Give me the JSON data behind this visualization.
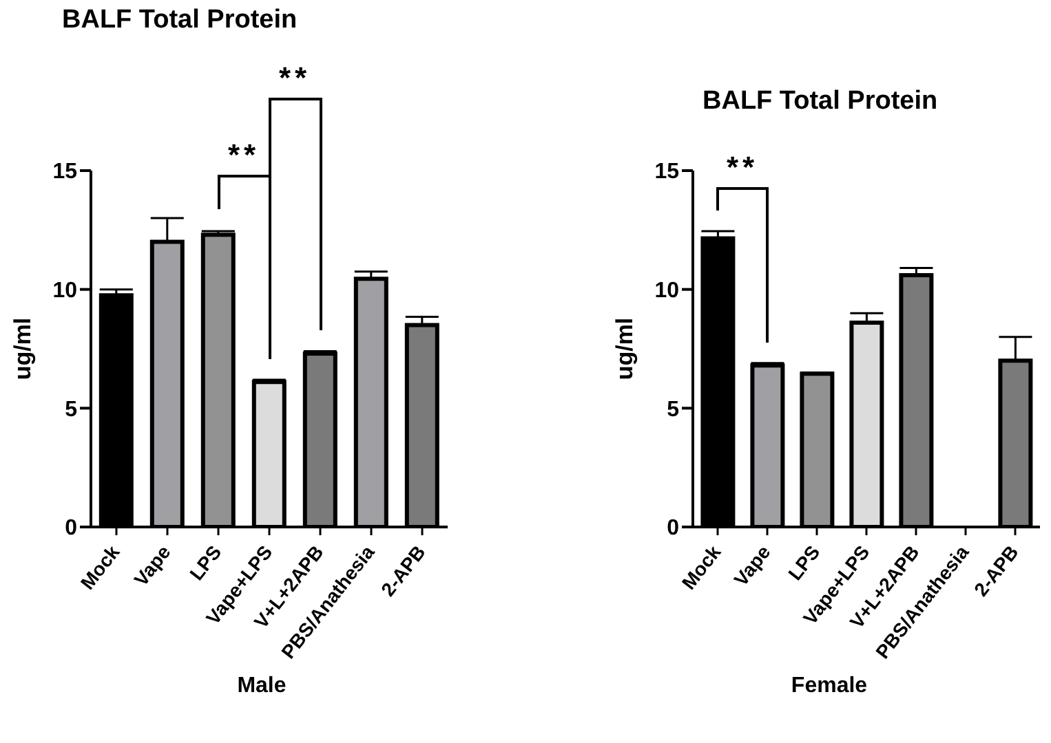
{
  "chart_data": [
    {
      "type": "bar",
      "title": "BALF Total Protein",
      "xlabel": "Male",
      "ylabel": "ug/ml",
      "categories": [
        "Mock",
        "Vape",
        "LPS",
        "Vape+LPS",
        "V+L+2APB",
        "PBS/Anathesia",
        "2-APB"
      ],
      "values": [
        9.75,
        12.0,
        12.3,
        6.1,
        7.3,
        10.45,
        8.5
      ],
      "colors": [
        "#000000",
        "#a0a0a4",
        "#929292",
        "#dcdcdc",
        "#7a7a7a",
        "#a0a0a4",
        "#7a7a7a"
      ],
      "errors": [
        [
          9.75,
          10.0
        ],
        [
          12.0,
          13.0
        ],
        [
          12.3,
          12.45
        ],
        [
          6.1,
          6.2
        ],
        [
          7.3,
          7.4
        ],
        [
          10.45,
          10.75
        ],
        [
          8.5,
          8.85
        ]
      ],
      "ylim": [
        0,
        15
      ],
      "yticks": [
        0,
        5,
        10,
        15
      ],
      "grid": false,
      "legend": false,
      "annotations": [
        "**",
        "**"
      ]
    },
    {
      "type": "bar",
      "title": "BALF Total Protein",
      "xlabel": "Female",
      "ylabel": "ug/ml",
      "categories": [
        "Mock",
        "Vape",
        "LPS",
        "Vape+LPS",
        "V+L+2APB",
        "PBS/Anathesia",
        "2-APB"
      ],
      "values": [
        12.15,
        6.8,
        6.45,
        8.6,
        10.6,
        null,
        7.0
      ],
      "colors": [
        "#000000",
        "#a0a0a4",
        "#929292",
        "#dcdcdc",
        "#7a7a7a",
        "#a0a0a4",
        "#7a7a7a"
      ],
      "errors": [
        [
          12.15,
          12.45
        ],
        [
          6.8,
          6.9
        ],
        [
          6.45,
          6.5
        ],
        [
          8.6,
          9.0
        ],
        [
          10.6,
          10.9
        ],
        null,
        [
          7.0,
          8.0
        ]
      ],
      "ylim": [
        0,
        15
      ],
      "yticks": [
        0,
        5,
        10,
        15
      ],
      "grid": false,
      "legend": false,
      "annotations": [
        "**"
      ]
    }
  ]
}
